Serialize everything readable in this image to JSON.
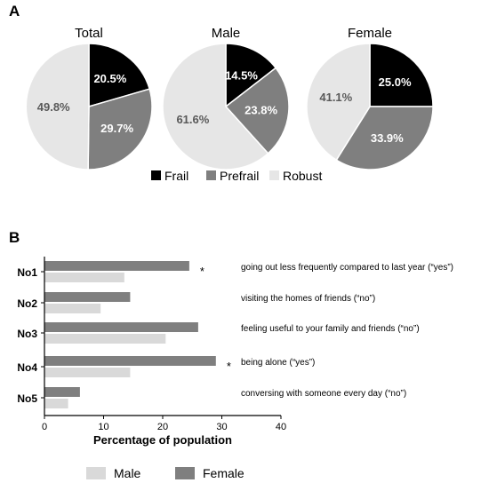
{
  "panels": {
    "a": "A",
    "b": "B"
  },
  "chart_data": [
    {
      "type": "pie",
      "legend": {
        "labels": [
          "Frail",
          "Prefrail",
          "Robust"
        ],
        "colors": [
          "#000000",
          "#7f7f7f",
          "#e6e6e6"
        ],
        "placement": "bottom"
      },
      "pies": [
        {
          "title": "Total",
          "slices": [
            {
              "label": "Frail",
              "value": 20.5,
              "text": "20.5%"
            },
            {
              "label": "Prefrail",
              "value": 29.7,
              "text": "29.7%"
            },
            {
              "label": "Robust",
              "value": 49.8,
              "text": "49.8%"
            }
          ]
        },
        {
          "title": "Male",
          "slices": [
            {
              "label": "Frail",
              "value": 14.5,
              "text": "14.5%"
            },
            {
              "label": "Prefrail",
              "value": 23.8,
              "text": "23.8%"
            },
            {
              "label": "Robust",
              "value": 61.6,
              "text": "61.6%"
            }
          ]
        },
        {
          "title": "Female",
          "slices": [
            {
              "label": "Frail",
              "value": 25.0,
              "text": "25.0%"
            },
            {
              "label": "Prefrail",
              "value": 33.9,
              "text": "33.9%"
            },
            {
              "label": "Robust",
              "value": 41.1,
              "text": "41.1%"
            }
          ]
        }
      ]
    },
    {
      "type": "bar",
      "orientation": "horizontal",
      "categories": [
        "No1",
        "No2",
        "No3",
        "No4",
        "No5"
      ],
      "annotations": [
        "going out less frequently compared to last year (“yes”)",
        "visiting the homes of friends (“no”)",
        "feeling useful to your family and friends (“no”)",
        "being alone (“yes”)",
        "conversing with someone every day (“no”)"
      ],
      "significance": [
        "*",
        "",
        "",
        "*",
        ""
      ],
      "series": [
        {
          "name": "Female",
          "color": "#7f7f7f",
          "values": [
            24.5,
            14.5,
            26.0,
            29.0,
            6.0
          ]
        },
        {
          "name": "Male",
          "color": "#d9d9d9",
          "values": [
            13.5,
            9.5,
            20.5,
            14.5,
            4.0
          ]
        }
      ],
      "xlabel": "Percentage of population",
      "xlim": [
        0,
        40
      ],
      "xticks": [
        0,
        10,
        20,
        30,
        40
      ],
      "legend": {
        "labels": [
          "Male",
          "Female"
        ],
        "placement": "bottom"
      }
    }
  ]
}
